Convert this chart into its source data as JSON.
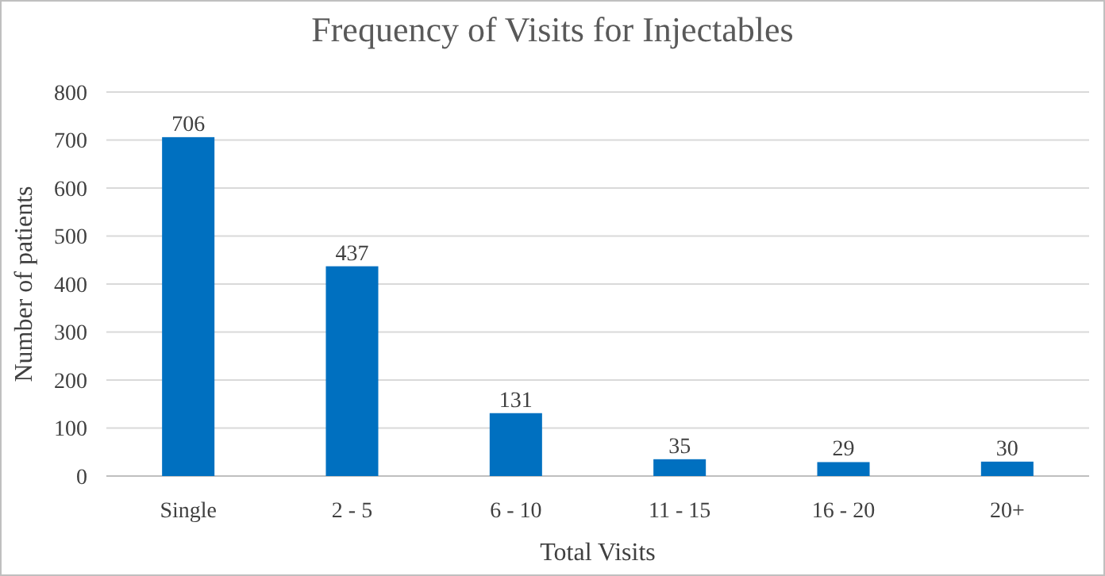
{
  "chart_data": {
    "type": "bar",
    "title": "Frequency of Visits for Injectables",
    "xlabel": "Total Visits",
    "ylabel": "Number of patients",
    "categories": [
      "Single",
      "2 - 5",
      "6 - 10",
      "11 - 15",
      "16 - 20",
      "20+"
    ],
    "values": [
      706,
      437,
      131,
      35,
      29,
      30
    ],
    "color": "#0070c0",
    "ylim": [
      0,
      800
    ],
    "yticks": [
      0,
      100,
      200,
      300,
      400,
      500,
      600,
      700,
      800
    ],
    "grid": "y",
    "data_labels": true
  }
}
